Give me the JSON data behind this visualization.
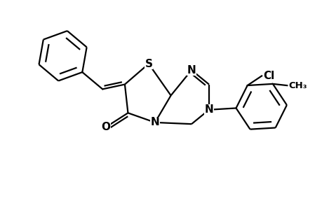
{
  "bg_color": "#ffffff",
  "lc": "#000000",
  "lw": 1.6,
  "fs": 11,
  "xlim": [
    0,
    10
  ],
  "ylim": [
    0,
    6.5
  ]
}
